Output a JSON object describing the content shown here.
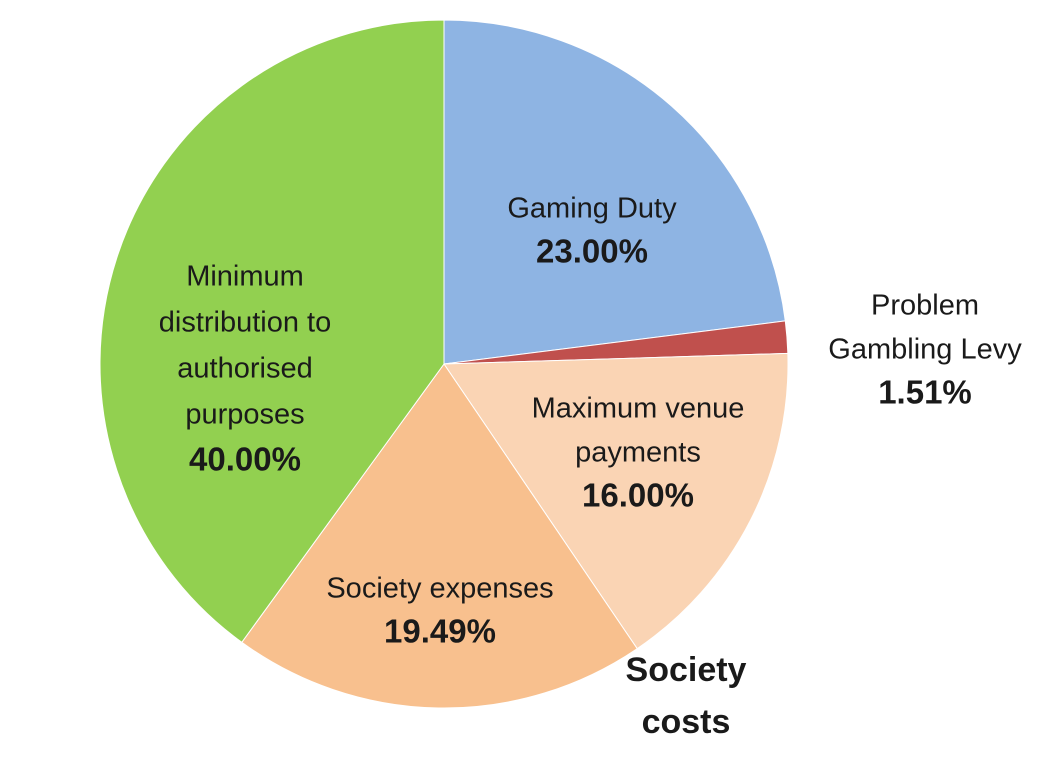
{
  "chart_data": {
    "type": "pie",
    "title": "",
    "start_angle_deg": 0,
    "direction": "clockwise",
    "slices": [
      {
        "label_lines": [
          "Gaming Duty"
        ],
        "value_label": "23.00%",
        "value": 23.0,
        "color": "#8EB4E3"
      },
      {
        "label_lines": [
          "Problem",
          "Gambling Levy"
        ],
        "value_label": "1.51%",
        "value": 1.51,
        "color": "#C0504D"
      },
      {
        "label_lines": [
          "Maximum venue",
          "payments"
        ],
        "value_label": "16.00%",
        "value": 16.0,
        "color": "#FAD4B4"
      },
      {
        "label_lines": [
          "Society expenses"
        ],
        "value_label": "19.49%",
        "value": 19.49,
        "color": "#F8C08E"
      },
      {
        "label_lines": [
          "Minimum",
          "distribution to",
          "authorised",
          "purposes"
        ],
        "value_label": "40.00%",
        "value": 40.0,
        "color": "#92D050"
      }
    ],
    "group_annotation": {
      "lines": [
        "Society",
        "costs"
      ],
      "covers": [
        "Maximum venue payments",
        "Society expenses"
      ]
    }
  }
}
